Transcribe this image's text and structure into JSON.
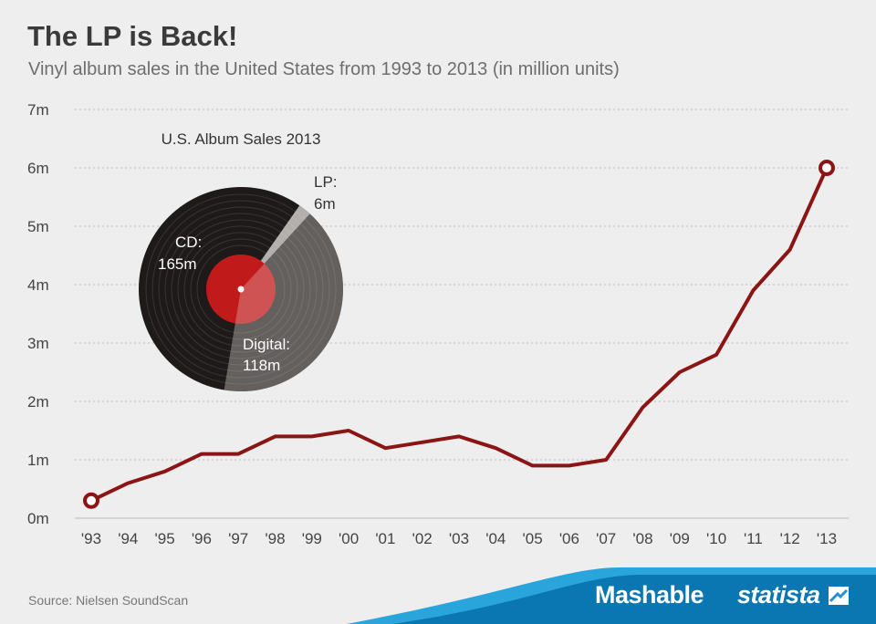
{
  "header": {
    "title": "The LP is Back!",
    "subtitle": "Vinyl album sales in the United States from 1993 to 2013 (in million units)"
  },
  "footer": {
    "source": "Source: Nielsen SoundScan",
    "brand_mashable": "Mashable",
    "brand_statista": "statista"
  },
  "colors": {
    "line": "#8b1414",
    "grid": "#b9b9b9",
    "banner_dark": "#0a77b3",
    "banner_light": "#2aa5dc",
    "record": "#1e1a1a",
    "label_red": "#c01a1a"
  },
  "chart_data": [
    {
      "type": "line",
      "title": "The LP is Back!",
      "subtitle": "Vinyl album sales in the United States from 1993 to 2013 (in million units)",
      "categories": [
        "'93",
        "'94",
        "'95",
        "'96",
        "'97",
        "'98",
        "'99",
        "'00",
        "'01",
        "'02",
        "'03",
        "'04",
        "'05",
        "'06",
        "'07",
        "'08",
        "'09",
        "'10",
        "'11",
        "'12",
        "'13"
      ],
      "series": [
        {
          "values": [
            0.3,
            0.6,
            0.8,
            1.1,
            1.1,
            1.4,
            1.4,
            1.5,
            1.2,
            1.3,
            1.4,
            1.2,
            0.9,
            0.9,
            1.0,
            1.9,
            2.5,
            2.8,
            3.9,
            4.6,
            6.0
          ]
        }
      ],
      "ylim": [
        0,
        7
      ],
      "yticks": [
        0,
        1,
        2,
        3,
        4,
        5,
        6,
        7
      ],
      "ytick_labels": [
        "0m",
        "1m",
        "2m",
        "3m",
        "4m",
        "5m",
        "6m",
        "7m"
      ],
      "highlighted_points": [
        "'93",
        "'13"
      ],
      "grid": true
    },
    {
      "type": "pie",
      "title": "U.S. Album Sales 2013",
      "categories": [
        "CD",
        "Digital",
        "LP"
      ],
      "values": [
        165,
        118,
        6
      ],
      "labels": [
        {
          "name": "CD:",
          "value": "165m"
        },
        {
          "name": "Digital:",
          "value": "118m"
        },
        {
          "name": "LP:",
          "value": "6m"
        }
      ]
    }
  ]
}
